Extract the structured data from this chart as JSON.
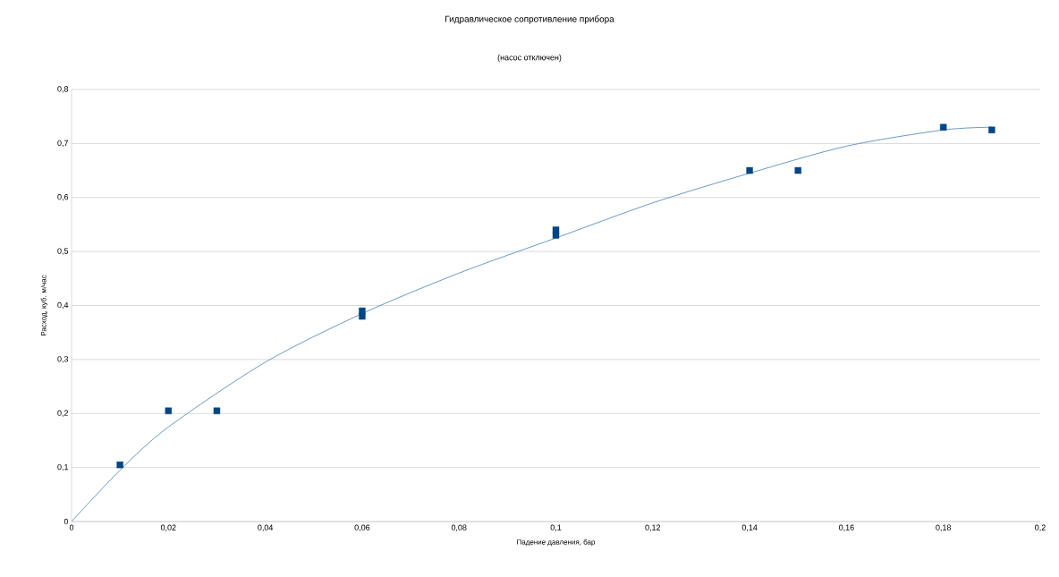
{
  "chart_data": {
    "type": "scatter",
    "title": "Гидравлическое сопротивление прибора",
    "subtitle": "(насос отключен)",
    "xlabel": "Падение давления, бар",
    "ylabel": "Расход, куб. м/час",
    "xlim": [
      0,
      0.2
    ],
    "ylim": [
      0,
      0.8
    ],
    "xticks": [
      0,
      {
        "value": 0.02,
        "label": "0,02"
      },
      {
        "value": 0.04,
        "label": "0,04"
      },
      {
        "value": 0.06,
        "label": "0,06"
      },
      {
        "value": 0.08,
        "label": "0,08"
      },
      {
        "value": 0.1,
        "label": "0,1"
      },
      {
        "value": 0.12,
        "label": "0,12"
      },
      {
        "value": 0.14,
        "label": "0,14"
      },
      {
        "value": 0.16,
        "label": "0,16"
      },
      {
        "value": 0.18,
        "label": "0,18"
      },
      {
        "value": 0.2,
        "label": "0,2"
      }
    ],
    "yticks": [
      0,
      {
        "value": 0.1,
        "label": "0,1"
      },
      {
        "value": 0.2,
        "label": "0,2"
      },
      {
        "value": 0.3,
        "label": "0,3"
      },
      {
        "value": 0.4,
        "label": "0,4"
      },
      {
        "value": 0.5,
        "label": "0,5"
      },
      {
        "value": 0.6,
        "label": "0,6"
      },
      {
        "value": 0.7,
        "label": "0,7"
      },
      {
        "value": 0.8,
        "label": "0,8"
      }
    ],
    "grid": "y",
    "series": [
      {
        "marker": "square",
        "color": "#004586",
        "x": [
          0.01,
          0.02,
          0.03,
          0.06,
          0.06,
          0.1,
          0.1,
          0.14,
          0.15,
          0.18,
          0.19
        ],
        "values": [
          0.105,
          0.205,
          0.205,
          0.39,
          0.38,
          0.54,
          0.53,
          0.65,
          0.65,
          0.73,
          0.725
        ]
      },
      {
        "type": "line",
        "color": "#5b8dbf",
        "x": [
          0,
          0.01,
          0.02,
          0.04,
          0.06,
          0.08,
          0.1,
          0.12,
          0.14,
          0.16,
          0.18,
          0.19
        ],
        "values": [
          0,
          0.095,
          0.175,
          0.295,
          0.385,
          0.46,
          0.525,
          0.59,
          0.645,
          0.695,
          0.725,
          0.73
        ]
      }
    ]
  }
}
